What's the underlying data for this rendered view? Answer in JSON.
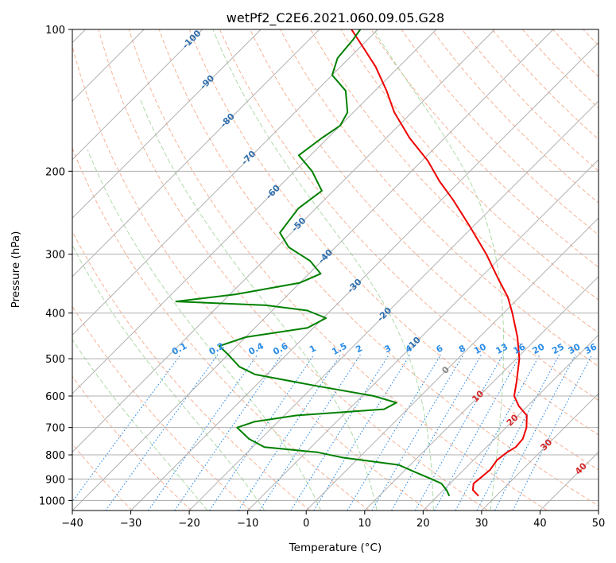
{
  "chart_data": {
    "type": "line",
    "subtype": "skew-T log-P diagram",
    "title": "wetPf2_C2E6.2021.060.09.05.G28",
    "xlabel": "Temperature (°C)",
    "ylabel": "Pressure (hPa)",
    "xlim": [
      -40,
      50
    ],
    "ylim": [
      1050,
      100
    ],
    "x_ticks": [
      -40,
      -30,
      -20,
      -10,
      0,
      10,
      20,
      30,
      40,
      50
    ],
    "y_ticks": [
      100,
      200,
      300,
      400,
      500,
      600,
      700,
      800,
      900,
      1000
    ],
    "grid": "on",
    "series": [
      {
        "name": "Temperature",
        "color": "#ee0000",
        "points": [
          {
            "p": 978,
            "t": 27.0
          },
          {
            "p": 950,
            "t": 25.0
          },
          {
            "p": 920,
            "t": 24.0
          },
          {
            "p": 900,
            "t": 24.2
          },
          {
            "p": 860,
            "t": 24.5
          },
          {
            "p": 820,
            "t": 24.0
          },
          {
            "p": 790,
            "t": 24.4
          },
          {
            "p": 770,
            "t": 25.0
          },
          {
            "p": 740,
            "t": 24.8
          },
          {
            "p": 700,
            "t": 23.5
          },
          {
            "p": 660,
            "t": 21.5
          },
          {
            "p": 630,
            "t": 18.5
          },
          {
            "p": 600,
            "t": 16.0
          },
          {
            "p": 560,
            "t": 14.0
          },
          {
            "p": 500,
            "t": 10.5
          },
          {
            "p": 450,
            "t": 6.5
          },
          {
            "p": 400,
            "t": 1.5
          },
          {
            "p": 370,
            "t": -2.0
          },
          {
            "p": 340,
            "t": -6.5
          },
          {
            "p": 300,
            "t": -13.0
          },
          {
            "p": 260,
            "t": -21.0
          },
          {
            "p": 230,
            "t": -28.0
          },
          {
            "p": 210,
            "t": -33.5
          },
          {
            "p": 190,
            "t": -39.0
          },
          {
            "p": 170,
            "t": -46.0
          },
          {
            "p": 150,
            "t": -53.0
          },
          {
            "p": 135,
            "t": -58.0
          },
          {
            "p": 120,
            "t": -64.0
          },
          {
            "p": 110,
            "t": -69.0
          },
          {
            "p": 100,
            "t": -74.5
          }
        ]
      },
      {
        "name": "Dewpoint",
        "color": "#008000",
        "points": [
          {
            "p": 978,
            "t": 22.0
          },
          {
            "p": 950,
            "t": 20.5
          },
          {
            "p": 920,
            "t": 18.5
          },
          {
            "p": 900,
            "t": 16.0
          },
          {
            "p": 870,
            "t": 12.0
          },
          {
            "p": 840,
            "t": 8.0
          },
          {
            "p": 810,
            "t": -3.0
          },
          {
            "p": 790,
            "t": -8.0
          },
          {
            "p": 770,
            "t": -18.0
          },
          {
            "p": 740,
            "t": -22.0
          },
          {
            "p": 700,
            "t": -26.0
          },
          {
            "p": 680,
            "t": -24.0
          },
          {
            "p": 660,
            "t": -18.0
          },
          {
            "p": 640,
            "t": -4.0
          },
          {
            "p": 620,
            "t": -3.0
          },
          {
            "p": 600,
            "t": -8.0
          },
          {
            "p": 570,
            "t": -20.0
          },
          {
            "p": 540,
            "t": -32.0
          },
          {
            "p": 520,
            "t": -36.0
          },
          {
            "p": 490,
            "t": -40.0
          },
          {
            "p": 470,
            "t": -43.0
          },
          {
            "p": 450,
            "t": -40.0
          },
          {
            "p": 430,
            "t": -31.0
          },
          {
            "p": 410,
            "t": -29.5
          },
          {
            "p": 395,
            "t": -34.0
          },
          {
            "p": 385,
            "t": -42.0
          },
          {
            "p": 378,
            "t": -58.0
          },
          {
            "p": 365,
            "t": -49.0
          },
          {
            "p": 345,
            "t": -40.0
          },
          {
            "p": 330,
            "t": -38.0
          },
          {
            "p": 310,
            "t": -42.0
          },
          {
            "p": 290,
            "t": -48.0
          },
          {
            "p": 270,
            "t": -52.0
          },
          {
            "p": 240,
            "t": -53.0
          },
          {
            "p": 220,
            "t": -52.0
          },
          {
            "p": 200,
            "t": -57.0
          },
          {
            "p": 185,
            "t": -62.0
          },
          {
            "p": 170,
            "t": -61.0
          },
          {
            "p": 160,
            "t": -60.0
          },
          {
            "p": 150,
            "t": -61.0
          },
          {
            "p": 135,
            "t": -65.0
          },
          {
            "p": 125,
            "t": -70.0
          },
          {
            "p": 115,
            "t": -72.0
          },
          {
            "p": 105,
            "t": -72.5
          },
          {
            "p": 100,
            "t": -73.0
          }
        ]
      }
    ],
    "reference_lines": {
      "isotherms_step": 10,
      "dry_adiabats_theta_K": [
        240,
        250,
        260,
        270,
        280,
        290,
        300,
        310,
        320,
        330,
        340,
        350,
        360,
        370,
        380,
        390,
        400,
        410,
        420,
        430,
        440,
        450,
        460
      ],
      "moist_adiabats_theta_w": [
        -20,
        -10,
        0,
        10,
        20,
        30
      ],
      "mixing_ratio_values": [
        0.1,
        0.2,
        0.4,
        0.6,
        1,
        1.5,
        2,
        3,
        4,
        6,
        8,
        10,
        13,
        16,
        20,
        25,
        30,
        36
      ]
    },
    "isotherm_labels": [
      {
        "text": "-100",
        "t": -100
      },
      {
        "text": "-90",
        "t": -90
      },
      {
        "text": "-80",
        "t": -80
      },
      {
        "text": "-70",
        "t": -70
      },
      {
        "text": "-60",
        "t": -60
      },
      {
        "text": "-50",
        "t": -50
      },
      {
        "text": "-40",
        "t": -40
      },
      {
        "text": "-30",
        "t": -30
      },
      {
        "text": "-20",
        "t": -20
      },
      {
        "text": "-10",
        "t": -10
      },
      {
        "text": "0",
        "t": 0
      },
      {
        "text": "10",
        "t": 10
      },
      {
        "text": "20",
        "t": 20
      },
      {
        "text": "30",
        "t": 30
      },
      {
        "text": "40",
        "t": 40
      }
    ],
    "mixing_ratio_labels": [
      "0.1",
      "0.2",
      "0.4",
      "0.6",
      "1",
      "1.5",
      "2",
      "3",
      "4",
      "6",
      "8",
      "10",
      "13",
      "16",
      "20",
      "25",
      "30",
      "36"
    ],
    "mixing_ratio_label_pressure": 490
  },
  "colors": {
    "temperature": "#ee0000",
    "dewpoint": "#008000",
    "grid": "#b0b0b0",
    "dry_adiabat": "#f4a582",
    "moist_adiabat": "#a6d6a0",
    "mixing_ratio": "#2b8ce6",
    "label_cold": "#2f6fae",
    "label_warm": "#d62728",
    "label_zero": "#888888"
  }
}
